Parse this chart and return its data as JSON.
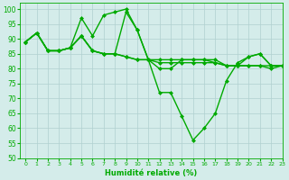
{
  "title": "",
  "xlabel": "Humidité relative (%)",
  "ylabel": "",
  "xlim": [
    -0.5,
    23
  ],
  "ylim": [
    50,
    102
  ],
  "yticks": [
    50,
    55,
    60,
    65,
    70,
    75,
    80,
    85,
    90,
    95,
    100
  ],
  "xticks": [
    0,
    1,
    2,
    3,
    4,
    5,
    6,
    7,
    8,
    9,
    10,
    11,
    12,
    13,
    14,
    15,
    16,
    17,
    18,
    19,
    20,
    21,
    22,
    23
  ],
  "bg_color": "#d4ecea",
  "grid_color": "#b0d0cf",
  "line_color": "#00aa00",
  "series": [
    [
      89,
      92,
      86,
      86,
      87,
      97,
      91,
      98,
      99,
      100,
      93,
      83,
      80,
      80,
      83,
      83,
      83,
      83,
      81,
      81,
      84,
      85,
      81,
      81
    ],
    [
      89,
      92,
      86,
      86,
      87,
      91,
      86,
      85,
      85,
      84,
      83,
      83,
      83,
      83,
      83,
      83,
      83,
      82,
      81,
      81,
      81,
      81,
      81,
      81
    ],
    [
      89,
      92,
      86,
      86,
      87,
      91,
      86,
      85,
      85,
      99,
      93,
      83,
      72,
      72,
      64,
      56,
      60,
      65,
      76,
      82,
      84,
      85,
      81,
      81
    ],
    [
      89,
      92,
      86,
      86,
      87,
      91,
      86,
      85,
      85,
      84,
      83,
      83,
      82,
      82,
      82,
      82,
      82,
      82,
      81,
      81,
      81,
      81,
      80,
      81
    ]
  ],
  "marker": "D",
  "markersize": 2.0,
  "linewidth": 1.0
}
